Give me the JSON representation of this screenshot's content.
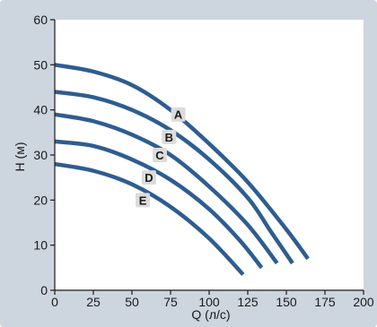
{
  "chart_data": {
    "type": "line",
    "title": "",
    "xlabel": "Q (л/с)",
    "ylabel": "H (м)",
    "xlim": [
      0,
      200
    ],
    "ylim": [
      0,
      60
    ],
    "x_ticks": [
      0,
      25,
      50,
      75,
      100,
      125,
      150,
      175,
      200
    ],
    "y_ticks": [
      0,
      10,
      20,
      30,
      40,
      50,
      60
    ],
    "grid": false,
    "legend": "inline-labels",
    "line_color": "#2e5d90",
    "label_box_color": "#dcdcdc",
    "series": [
      {
        "name": "A",
        "x": [
          0,
          25,
          50,
          75,
          100,
          125,
          150,
          164
        ],
        "y": [
          50,
          48.5,
          45.5,
          40,
          32.5,
          24,
          13.5,
          7
        ],
        "label_at": [
          80,
          39
        ]
      },
      {
        "name": "B",
        "x": [
          0,
          25,
          50,
          75,
          100,
          125,
          140,
          154
        ],
        "y": [
          44,
          42.8,
          40,
          35.5,
          29,
          20.5,
          13,
          6
        ],
        "label_at": [
          74,
          34
        ]
      },
      {
        "name": "C",
        "x": [
          0,
          25,
          50,
          75,
          100,
          125,
          144
        ],
        "y": [
          39,
          37.5,
          34.5,
          30,
          23,
          14.5,
          6
        ],
        "label_at": [
          68,
          30
        ]
      },
      {
        "name": "D",
        "x": [
          0,
          25,
          50,
          75,
          100,
          120,
          134
        ],
        "y": [
          33,
          32,
          29,
          24.5,
          18,
          11,
          5
        ],
        "label_at": [
          61,
          25
        ]
      },
      {
        "name": "E",
        "x": [
          0,
          25,
          50,
          75,
          100,
          122
        ],
        "y": [
          28,
          26.5,
          23.5,
          18.5,
          11.5,
          3.5
        ],
        "label_at": [
          57,
          20
        ]
      }
    ]
  }
}
